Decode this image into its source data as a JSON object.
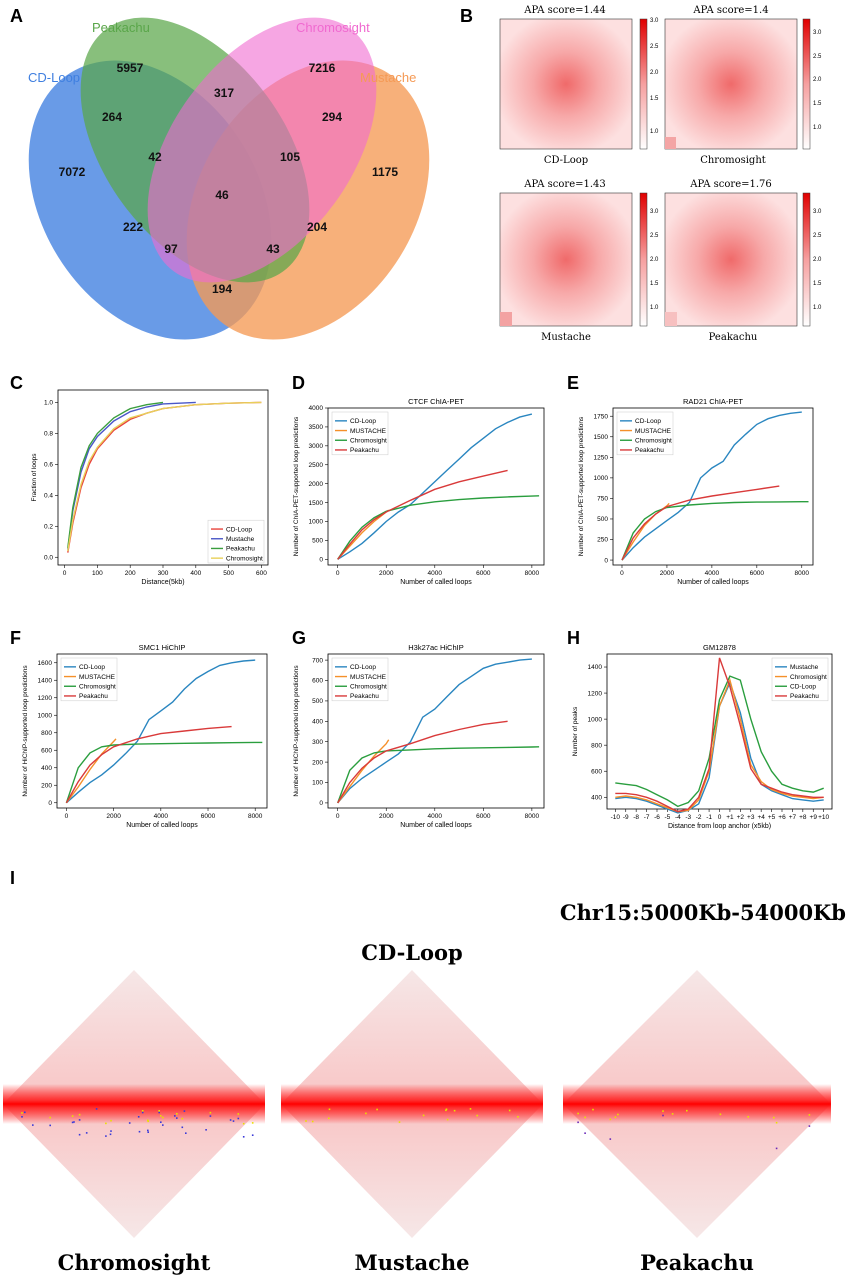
{
  "panel_letters": [
    "A",
    "B",
    "C",
    "D",
    "E",
    "F",
    "G",
    "H",
    "I"
  ],
  "venn": {
    "set_labels": [
      "CD-Loop",
      "Peakachu",
      "Chromosight",
      "Mustache"
    ],
    "set_colors": [
      "#3f7fe0",
      "#5aa64a",
      "#f06ad0",
      "#f59a55"
    ],
    "region_counts": [
      "5957",
      "7216",
      "7072",
      "1175",
      "264",
      "317",
      "294",
      "42",
      "105",
      "46",
      "222",
      "204",
      "97",
      "43",
      "194"
    ]
  },
  "apa": {
    "maps": [
      {
        "score_label": "APA score=1.44",
        "method": "CD-Loop",
        "ticks": [
          "3.0",
          "2.5",
          "2.0",
          "1.5",
          "1.0"
        ]
      },
      {
        "score_label": "APA score=1.4",
        "method": "Chromosight",
        "ticks": [
          "3.0",
          "2.5",
          "2.0",
          "1.5",
          "1.0"
        ]
      },
      {
        "score_label": "APA score=1.43",
        "method": "Mustache",
        "ticks": [
          "3.0",
          "2.5",
          "2.0",
          "1.5",
          "1.0"
        ]
      },
      {
        "score_label": "APA score=1.76",
        "method": "Peakachu",
        "ticks": [
          "3.0",
          "2.5",
          "2.0",
          "1.5",
          "1.0"
        ]
      }
    ]
  },
  "chart_data": [
    {
      "panel": "C",
      "type": "line",
      "title": "",
      "xlabel": "Distance(5kb)",
      "ylabel": "Fraction of loops",
      "xlim": [
        -20,
        620
      ],
      "ylim": [
        -0.05,
        1.08
      ],
      "xticks": [
        "0",
        "100",
        "200",
        "300",
        "400",
        "500",
        "600"
      ],
      "yticks": [
        "0.0",
        "0.2",
        "0.4",
        "0.6",
        "0.8",
        "1.0"
      ],
      "legend": [
        "CD-Loop",
        "Mustache",
        "Peakachu",
        "Chromosight"
      ],
      "series": [
        {
          "name": "CD-Loop",
          "color": "#e8433c",
          "x": [
            10,
            25,
            50,
            75,
            100,
            150,
            200,
            250,
            300,
            400,
            500,
            600
          ],
          "y": [
            0.03,
            0.22,
            0.45,
            0.6,
            0.7,
            0.82,
            0.89,
            0.93,
            0.96,
            0.985,
            0.995,
            1.0
          ]
        },
        {
          "name": "Mustache",
          "color": "#4a57c8",
          "x": [
            10,
            25,
            50,
            75,
            100,
            150,
            200,
            250,
            300,
            350,
            400
          ],
          "y": [
            0.05,
            0.3,
            0.55,
            0.7,
            0.78,
            0.88,
            0.94,
            0.97,
            0.99,
            0.995,
            1.0
          ]
        },
        {
          "name": "Peakachu",
          "color": "#3a9e3e",
          "x": [
            10,
            25,
            50,
            75,
            100,
            150,
            200,
            250,
            300
          ],
          "y": [
            0.06,
            0.32,
            0.58,
            0.72,
            0.8,
            0.9,
            0.96,
            0.985,
            1.0
          ]
        },
        {
          "name": "Chromosight",
          "color": "#e8d05a",
          "x": [
            10,
            25,
            50,
            75,
            100,
            150,
            200,
            300,
            400,
            500,
            600
          ],
          "y": [
            0.04,
            0.24,
            0.47,
            0.62,
            0.71,
            0.83,
            0.9,
            0.96,
            0.985,
            0.995,
            1.0
          ]
        }
      ]
    },
    {
      "panel": "D",
      "type": "line",
      "title": "CTCF ChIA-PET",
      "xlabel": "Number of called loops",
      "ylabel": "Number of ChIA-PET-supported loop predictions",
      "xlim": [
        -400,
        8500
      ],
      "ylim": [
        -150,
        4000
      ],
      "xticks": [
        "0",
        "2000",
        "4000",
        "6000",
        "8000"
      ],
      "yticks": [
        "0",
        "500",
        "1000",
        "1500",
        "2000",
        "2500",
        "3000",
        "3500",
        "4000"
      ],
      "legend": [
        "CD-Loop",
        "MUSTACHE",
        "Chromosight",
        "Peakachu"
      ],
      "series": [
        {
          "name": "CD-Loop",
          "color": "#2a86c0",
          "x": [
            0,
            500,
            1000,
            1500,
            2000,
            2500,
            3000,
            3500,
            4000,
            4500,
            5000,
            5500,
            6000,
            6500,
            7000,
            7500,
            8000
          ],
          "y": [
            0,
            200,
            420,
            700,
            1000,
            1250,
            1450,
            1750,
            2050,
            2350,
            2650,
            2950,
            3200,
            3450,
            3620,
            3760,
            3840
          ]
        },
        {
          "name": "MUSTACHE",
          "color": "#f5902a",
          "x": [
            0,
            500,
            1000,
            1500,
            2000,
            2100
          ],
          "y": [
            0,
            350,
            700,
            1000,
            1250,
            1300
          ]
        },
        {
          "name": "Chromosight",
          "color": "#2a9e3e",
          "x": [
            0,
            500,
            1000,
            1500,
            2000,
            3000,
            4000,
            5000,
            6000,
            7000,
            8000,
            8300
          ],
          "y": [
            0,
            480,
            850,
            1100,
            1270,
            1430,
            1520,
            1580,
            1620,
            1650,
            1670,
            1680
          ]
        },
        {
          "name": "Peakachu",
          "color": "#d93a3a",
          "x": [
            0,
            500,
            1000,
            1500,
            2000,
            3000,
            4000,
            5000,
            6000,
            7000
          ],
          "y": [
            0,
            400,
            780,
            1050,
            1250,
            1560,
            1850,
            2050,
            2200,
            2350
          ]
        }
      ]
    },
    {
      "panel": "E",
      "type": "line",
      "title": "RAD21 ChIA-PET",
      "xlabel": "Number of called loops",
      "ylabel": "Number of ChIA-PET-supported loop predictions",
      "xlim": [
        -400,
        8500
      ],
      "ylim": [
        -60,
        1850
      ],
      "xticks": [
        "0",
        "2000",
        "4000",
        "6000",
        "8000"
      ],
      "yticks": [
        "0",
        "250",
        "500",
        "750",
        "1000",
        "1250",
        "1500",
        "1750"
      ],
      "legend": [
        "CD-Loop",
        "MUSTACHE",
        "Chromosight",
        "Peakachu"
      ],
      "series": [
        {
          "name": "CD-Loop",
          "color": "#2a86c0",
          "x": [
            0,
            500,
            1000,
            1500,
            2000,
            2500,
            3000,
            3500,
            4000,
            4500,
            5000,
            5500,
            6000,
            6500,
            7000,
            7500,
            8000
          ],
          "y": [
            0,
            150,
            280,
            380,
            480,
            580,
            700,
            1000,
            1120,
            1200,
            1400,
            1530,
            1650,
            1720,
            1760,
            1785,
            1800
          ]
        },
        {
          "name": "MUSTACHE",
          "color": "#f5902a",
          "x": [
            0,
            500,
            1000,
            1500,
            2000,
            2100
          ],
          "y": [
            0,
            220,
            420,
            560,
            660,
            690
          ]
        },
        {
          "name": "Chromosight",
          "color": "#2a9e3e",
          "x": [
            0,
            500,
            1000,
            1500,
            2000,
            3000,
            4000,
            5000,
            6000,
            7000,
            8000,
            8300
          ],
          "y": [
            0,
            330,
            500,
            590,
            640,
            670,
            690,
            700,
            705,
            708,
            710,
            710
          ]
        },
        {
          "name": "Peakachu",
          "color": "#d93a3a",
          "x": [
            0,
            500,
            1000,
            1500,
            2000,
            3000,
            4000,
            5000,
            6000,
            7000
          ],
          "y": [
            0,
            270,
            440,
            560,
            650,
            730,
            780,
            820,
            860,
            900
          ]
        }
      ]
    },
    {
      "panel": "F",
      "type": "line",
      "title": "SMC1 HiChIP",
      "xlabel": "Number of called loops",
      "ylabel": "Number of HiChIP-supported loop predictions",
      "xlim": [
        -400,
        8500
      ],
      "ylim": [
        -60,
        1700
      ],
      "xticks": [
        "0",
        "2000",
        "4000",
        "6000",
        "8000"
      ],
      "yticks": [
        "0",
        "200",
        "400",
        "600",
        "800",
        "1000",
        "1200",
        "1400",
        "1600"
      ],
      "legend": [
        "CD-Loop",
        "MUSTACHE",
        "Chromosight",
        "Peakachu"
      ],
      "series": [
        {
          "name": "CD-Loop",
          "color": "#2a86c0",
          "x": [
            0,
            500,
            1000,
            1500,
            2000,
            2500,
            3000,
            3500,
            4000,
            4500,
            5000,
            5500,
            6000,
            6500,
            7000,
            7500,
            8000
          ],
          "y": [
            0,
            120,
            230,
            320,
            430,
            560,
            700,
            950,
            1050,
            1150,
            1300,
            1420,
            1500,
            1570,
            1600,
            1620,
            1630
          ]
        },
        {
          "name": "MUSTACHE",
          "color": "#f5902a",
          "x": [
            0,
            500,
            1000,
            1500,
            2000,
            2100
          ],
          "y": [
            0,
            180,
            380,
            560,
            700,
            730
          ]
        },
        {
          "name": "Chromosight",
          "color": "#2a9e3e",
          "x": [
            0,
            500,
            1000,
            1500,
            2000,
            3000,
            4000,
            5000,
            6000,
            7000,
            8000,
            8300
          ],
          "y": [
            0,
            400,
            570,
            640,
            660,
            670,
            675,
            680,
            683,
            686,
            690,
            690
          ]
        },
        {
          "name": "Peakachu",
          "color": "#d93a3a",
          "x": [
            0,
            500,
            1000,
            1500,
            2000,
            3000,
            4000,
            5000,
            6000,
            7000
          ],
          "y": [
            0,
            240,
            430,
            550,
            640,
            730,
            790,
            820,
            850,
            870
          ]
        }
      ]
    },
    {
      "panel": "G",
      "type": "line",
      "title": "H3k27ac HiChIP",
      "xlabel": "Number of called loops",
      "ylabel": "Number of HiChIP-supported loop predictions",
      "xlim": [
        -400,
        8500
      ],
      "ylim": [
        -25,
        730
      ],
      "xticks": [
        "0",
        "2000",
        "4000",
        "6000",
        "8000"
      ],
      "yticks": [
        "0",
        "100",
        "200",
        "300",
        "400",
        "500",
        "600",
        "700"
      ],
      "legend": [
        "CD-Loop",
        "MUSTACHE",
        "Chromosight",
        "Peakachu"
      ],
      "series": [
        {
          "name": "CD-Loop",
          "color": "#2a86c0",
          "x": [
            0,
            500,
            1000,
            1500,
            2000,
            2500,
            3000,
            3500,
            4000,
            4500,
            5000,
            5500,
            6000,
            6500,
            7000,
            7500,
            8000
          ],
          "y": [
            0,
            70,
            120,
            160,
            200,
            240,
            300,
            420,
            460,
            520,
            580,
            620,
            660,
            680,
            690,
            700,
            705
          ]
        },
        {
          "name": "MUSTACHE",
          "color": "#f5902a",
          "x": [
            0,
            500,
            1000,
            1500,
            2000,
            2100
          ],
          "y": [
            0,
            80,
            160,
            230,
            290,
            310
          ]
        },
        {
          "name": "Chromosight",
          "color": "#2a9e3e",
          "x": [
            0,
            500,
            1000,
            1500,
            2000,
            3000,
            4000,
            5000,
            6000,
            7000,
            8000,
            8300
          ],
          "y": [
            0,
            160,
            220,
            245,
            255,
            260,
            265,
            268,
            270,
            272,
            274,
            275
          ]
        },
        {
          "name": "Peakachu",
          "color": "#d93a3a",
          "x": [
            0,
            500,
            1000,
            1500,
            2000,
            3000,
            4000,
            5000,
            6000,
            7000
          ],
          "y": [
            0,
            100,
            170,
            220,
            255,
            290,
            330,
            360,
            385,
            400
          ]
        }
      ]
    },
    {
      "panel": "H",
      "type": "line",
      "title": "GM12878",
      "xlabel": "Distance from loop anchor (x5kb)",
      "ylabel": "Number of peaks",
      "xlim": [
        -10.8,
        10.8
      ],
      "ylim": [
        310,
        1500
      ],
      "categories": [
        "-10",
        "-9",
        "-8",
        "-7",
        "-6",
        "-5",
        "-4",
        "-3",
        "-2",
        "-1",
        "0",
        "+1",
        "+2",
        "+3",
        "+4",
        "+5",
        "+6",
        "+7",
        "+8",
        "+9",
        "+10"
      ],
      "xticks": [
        "-10",
        "-9",
        "-8",
        "-7",
        "-6",
        "-5",
        "-4",
        "-3",
        "-2",
        "-1",
        "0",
        "+1",
        "+2",
        "+3",
        "+4",
        "+5",
        "+6",
        "+7",
        "+8",
        "+9",
        "+10"
      ],
      "yticks": [
        "400",
        "600",
        "800",
        "1000",
        "1200",
        "1400"
      ],
      "legend": [
        "Mustache",
        "Chromosight",
        "CD-Loop",
        "Peakachu"
      ],
      "series": [
        {
          "name": "Mustache",
          "color": "#2a86c0",
          "values": [
            390,
            400,
            390,
            370,
            340,
            310,
            280,
            300,
            350,
            550,
            1100,
            1280,
            1050,
            700,
            500,
            450,
            420,
            390,
            380,
            370,
            380
          ]
        },
        {
          "name": "Chromosight",
          "color": "#f5902a",
          "values": [
            400,
            410,
            400,
            380,
            350,
            320,
            290,
            300,
            380,
            600,
            1100,
            1300,
            1000,
            650,
            520,
            460,
            430,
            410,
            400,
            390,
            400
          ]
        },
        {
          "name": "CD-Loop",
          "color": "#2a9e3e",
          "values": [
            510,
            500,
            490,
            460,
            420,
            380,
            330,
            360,
            450,
            700,
            1150,
            1330,
            1300,
            1000,
            750,
            600,
            500,
            470,
            450,
            440,
            470
          ]
        },
        {
          "name": "Peakachu",
          "color": "#d93a3a",
          "values": [
            430,
            430,
            420,
            400,
            370,
            330,
            290,
            310,
            400,
            620,
            1470,
            1250,
            950,
            620,
            500,
            470,
            440,
            420,
            410,
            400,
            400
          ]
        }
      ]
    }
  ],
  "hic": {
    "region_label": "Chr15:5000Kb-54000Kb",
    "top_label": "CD-Loop",
    "maps": [
      "Chromosight",
      "Mustache",
      "Peakachu"
    ]
  }
}
